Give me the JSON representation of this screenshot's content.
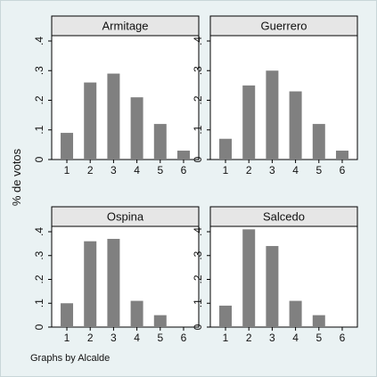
{
  "chart_data": {
    "type": "bar",
    "facet_by_label": "Graphs by Alcalde",
    "ylabel": "% de votos",
    "xlabel": "",
    "categories": [
      "1",
      "2",
      "3",
      "4",
      "5",
      "6"
    ],
    "ylim": [
      0,
      0.4
    ],
    "yticks": [
      0,
      0.1,
      0.2,
      0.3,
      0.4
    ],
    "ytick_labels": [
      "0",
      ".1",
      ".2",
      ".3",
      ".4"
    ],
    "grid": false,
    "bar_color": "#808080",
    "panel_header_color": "#e6e6e6",
    "background_color": "#eaf2f3",
    "panels": [
      {
        "name": "Armitage",
        "values": [
          0.09,
          0.26,
          0.29,
          0.21,
          0.12,
          0.03
        ]
      },
      {
        "name": "Guerrero",
        "values": [
          0.07,
          0.25,
          0.3,
          0.23,
          0.12,
          0.03
        ]
      },
      {
        "name": "Ospina",
        "values": [
          0.1,
          0.36,
          0.37,
          0.11,
          0.05,
          0.0
        ]
      },
      {
        "name": "Salcedo",
        "values": [
          0.09,
          0.41,
          0.34,
          0.11,
          0.05,
          0.0
        ]
      }
    ]
  }
}
